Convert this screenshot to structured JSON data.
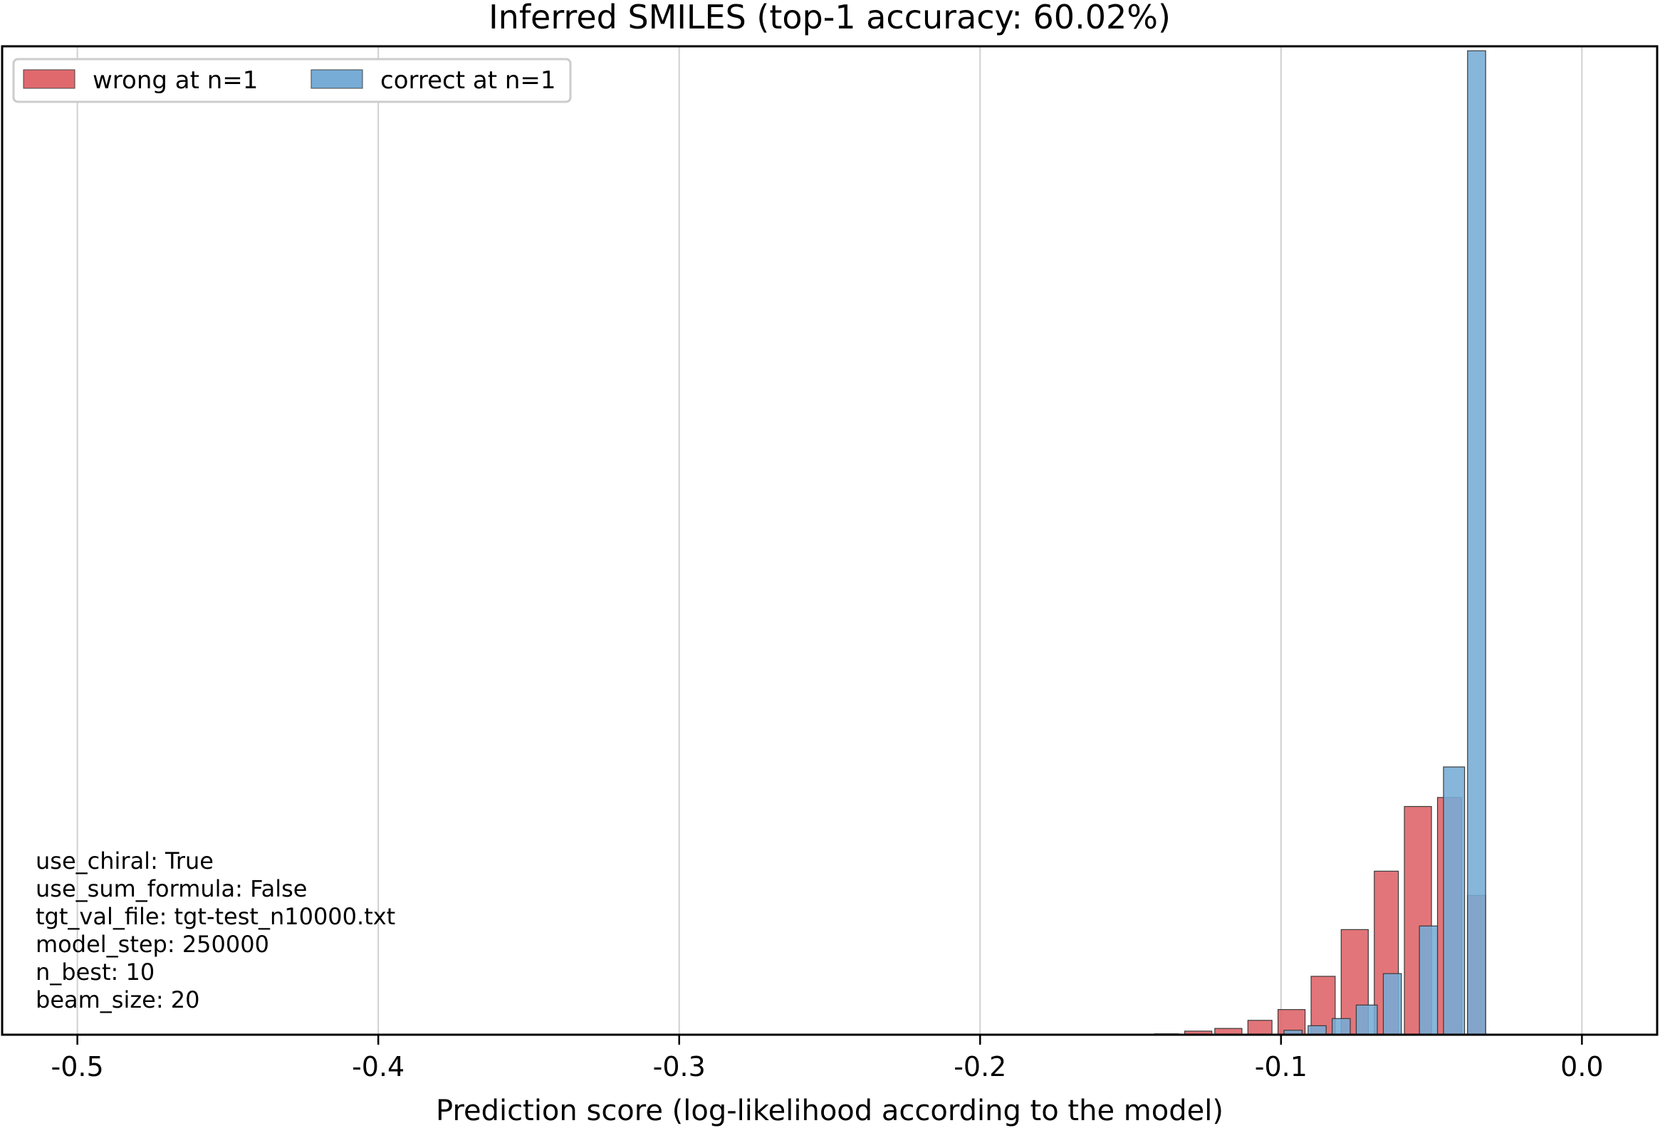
{
  "chart_data": {
    "type": "bar",
    "title": "Inferred SMILES (top-1 accuracy: 60.02%)",
    "xlabel": "Prediction score (log-likelihood according to the model)",
    "ylabel": "",
    "xlim": [
      -0.525,
      0.025
    ],
    "ylim": [
      0,
      1100
    ],
    "x_ticks": [
      -0.5,
      -0.4,
      -0.3,
      -0.2,
      -0.1,
      0.0
    ],
    "x_tick_labels": [
      "-0.5",
      "-0.4",
      "-0.3",
      "-0.2",
      "-0.1",
      "0.0"
    ],
    "grid": "vertical",
    "legend_position": "top-left",
    "series": [
      {
        "name": "wrong at n=1",
        "color": "#e0696e",
        "bins": [
          {
            "x0": -0.142,
            "x1": -0.134,
            "value": 1
          },
          {
            "x0": -0.132,
            "x1": -0.123,
            "value": 4
          },
          {
            "x0": -0.122,
            "x1": -0.113,
            "value": 7
          },
          {
            "x0": -0.111,
            "x1": -0.103,
            "value": 16
          },
          {
            "x0": -0.101,
            "x1": -0.092,
            "value": 28
          },
          {
            "x0": -0.09,
            "x1": -0.082,
            "value": 65
          },
          {
            "x0": -0.08,
            "x1": -0.071,
            "value": 117
          },
          {
            "x0": -0.069,
            "x1": -0.061,
            "value": 182
          },
          {
            "x0": -0.059,
            "x1": -0.05,
            "value": 254
          },
          {
            "x0": -0.048,
            "x1": -0.04,
            "value": 264
          },
          {
            "x0": -0.038,
            "x1": -0.032,
            "value": 155
          }
        ]
      },
      {
        "name": "correct at n=1",
        "color": "#76acd6",
        "bins": [
          {
            "x0": -0.099,
            "x1": -0.093,
            "value": 5
          },
          {
            "x0": -0.091,
            "x1": -0.085,
            "value": 10
          },
          {
            "x0": -0.083,
            "x1": -0.077,
            "value": 18
          },
          {
            "x0": -0.075,
            "x1": -0.068,
            "value": 33
          },
          {
            "x0": -0.066,
            "x1": -0.06,
            "value": 68
          },
          {
            "x0": -0.054,
            "x1": -0.048,
            "value": 121
          },
          {
            "x0": -0.046,
            "x1": -0.039,
            "value": 298
          },
          {
            "x0": -0.038,
            "x1": -0.032,
            "value": 1095
          }
        ]
      }
    ],
    "annotation_lines": [
      "use_chiral: True",
      "use_sum_formula: False",
      "tgt_val_file: tgt-test_n10000.txt",
      "model_step: 250000",
      "n_best: 10",
      "beam_size: 20"
    ]
  }
}
